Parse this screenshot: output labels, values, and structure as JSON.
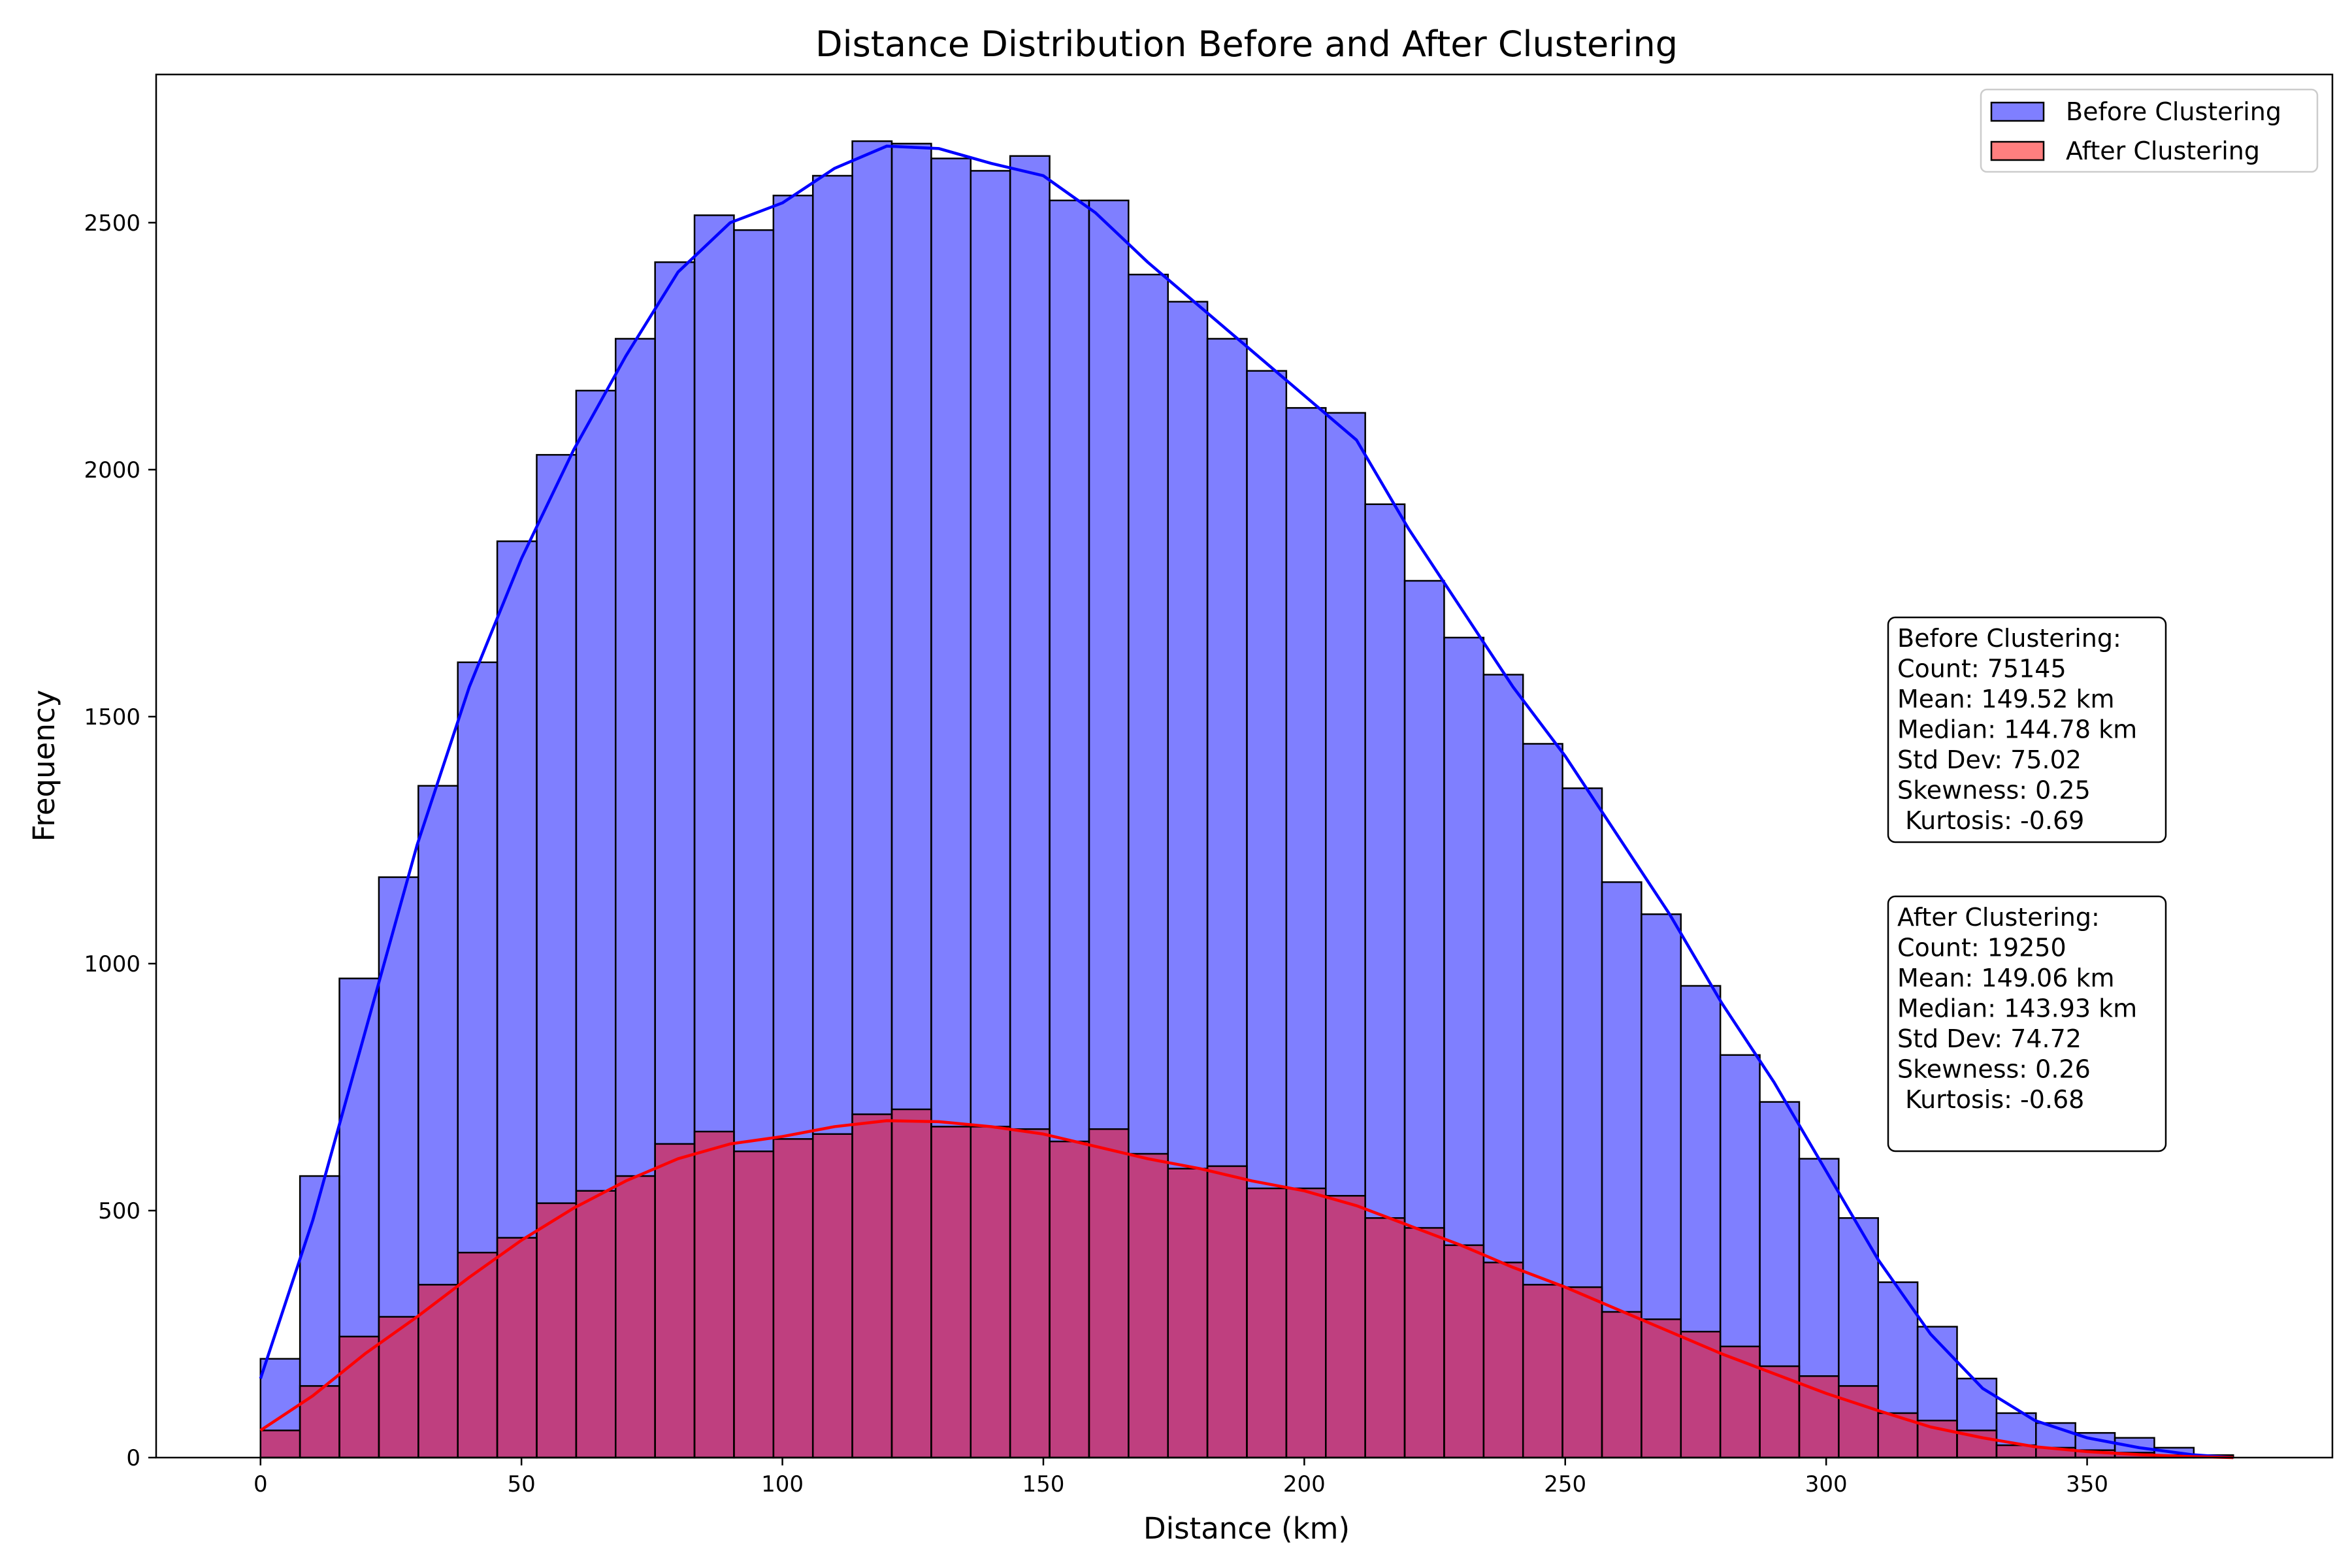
{
  "chart_data": {
    "type": "bar",
    "subtype": "histogram-with-kde",
    "title": "Distance Distribution Before and After Clustering",
    "xlabel": "Distance (km)",
    "ylabel": "Frequency",
    "xlim": [
      -20,
      397
    ],
    "ylim": [
      0,
      2800
    ],
    "xticks": [
      0,
      50,
      100,
      150,
      200,
      250,
      300,
      350
    ],
    "yticks": [
      0,
      500,
      1000,
      1500,
      2000,
      2500
    ],
    "grid": false,
    "legend_position": "top-right",
    "series": [
      {
        "name": "Before Clustering",
        "color": "#0000ff",
        "bin_start": 0,
        "bin_width": 7.56,
        "values": [
          200,
          570,
          970,
          1175,
          1360,
          1610,
          1855,
          2030,
          2160,
          2265,
          2420,
          2515,
          2485,
          2555,
          2595,
          2665,
          2660,
          2630,
          2605,
          2635,
          2545,
          2545,
          2395,
          2340,
          2265,
          2200,
          2125,
          2115,
          1930,
          1775,
          1660,
          1585,
          1445,
          1355,
          1165,
          1100,
          955,
          815,
          720,
          605,
          485,
          355,
          265,
          160,
          90,
          70,
          50,
          40,
          20,
          5
        ],
        "kde": [
          [
            0,
            160
          ],
          [
            10,
            480
          ],
          [
            20,
            860
          ],
          [
            30,
            1240
          ],
          [
            40,
            1560
          ],
          [
            50,
            1820
          ],
          [
            60,
            2040
          ],
          [
            70,
            2230
          ],
          [
            80,
            2400
          ],
          [
            90,
            2500
          ],
          [
            100,
            2540
          ],
          [
            110,
            2610
          ],
          [
            120,
            2655
          ],
          [
            130,
            2650
          ],
          [
            140,
            2620
          ],
          [
            150,
            2595
          ],
          [
            160,
            2520
          ],
          [
            170,
            2420
          ],
          [
            180,
            2330
          ],
          [
            190,
            2240
          ],
          [
            200,
            2150
          ],
          [
            210,
            2060
          ],
          [
            220,
            1880
          ],
          [
            230,
            1720
          ],
          [
            240,
            1560
          ],
          [
            250,
            1420
          ],
          [
            260,
            1260
          ],
          [
            270,
            1100
          ],
          [
            280,
            920
          ],
          [
            290,
            760
          ],
          [
            300,
            580
          ],
          [
            310,
            400
          ],
          [
            320,
            250
          ],
          [
            330,
            140
          ],
          [
            340,
            75
          ],
          [
            350,
            40
          ],
          [
            360,
            20
          ],
          [
            370,
            6
          ],
          [
            378,
            0
          ]
        ]
      },
      {
        "name": "After Clustering",
        "color": "#ff0000",
        "bin_start": 0,
        "bin_width": 7.56,
        "values": [
          55,
          145,
          245,
          285,
          350,
          415,
          445,
          515,
          540,
          570,
          635,
          660,
          620,
          645,
          655,
          695,
          705,
          670,
          670,
          665,
          640,
          665,
          615,
          585,
          590,
          545,
          545,
          530,
          485,
          465,
          430,
          395,
          350,
          345,
          295,
          280,
          255,
          225,
          185,
          165,
          145,
          90,
          75,
          55,
          25,
          20,
          15,
          10,
          5,
          2
        ],
        "kde": [
          [
            0,
            55
          ],
          [
            10,
            125
          ],
          [
            20,
            210
          ],
          [
            30,
            285
          ],
          [
            40,
            365
          ],
          [
            50,
            440
          ],
          [
            60,
            505
          ],
          [
            70,
            560
          ],
          [
            80,
            605
          ],
          [
            90,
            635
          ],
          [
            100,
            650
          ],
          [
            110,
            670
          ],
          [
            120,
            682
          ],
          [
            130,
            680
          ],
          [
            140,
            670
          ],
          [
            150,
            655
          ],
          [
            160,
            630
          ],
          [
            170,
            605
          ],
          [
            180,
            585
          ],
          [
            190,
            560
          ],
          [
            200,
            540
          ],
          [
            210,
            510
          ],
          [
            220,
            470
          ],
          [
            230,
            430
          ],
          [
            240,
            385
          ],
          [
            250,
            345
          ],
          [
            260,
            300
          ],
          [
            270,
            255
          ],
          [
            280,
            210
          ],
          [
            290,
            170
          ],
          [
            300,
            130
          ],
          [
            310,
            95
          ],
          [
            320,
            62
          ],
          [
            330,
            40
          ],
          [
            340,
            22
          ],
          [
            350,
            12
          ],
          [
            360,
            6
          ],
          [
            370,
            2
          ],
          [
            378,
            0
          ]
        ]
      }
    ],
    "annotations": [
      {
        "lines": [
          "Before Clustering:",
          "Count: 75145",
          "Mean: 149.52 km",
          "Median: 144.78 km",
          "Std Dev: 75.02",
          "Skewness: 0.25",
          " Kurtosis: -0.69"
        ]
      },
      {
        "lines": [
          "After Clustering:",
          "Count: 19250",
          "Mean: 149.06 km",
          "Median: 143.93 km",
          "Std Dev: 74.72",
          "Skewness: 0.26",
          " Kurtosis: -0.68"
        ]
      }
    ]
  }
}
